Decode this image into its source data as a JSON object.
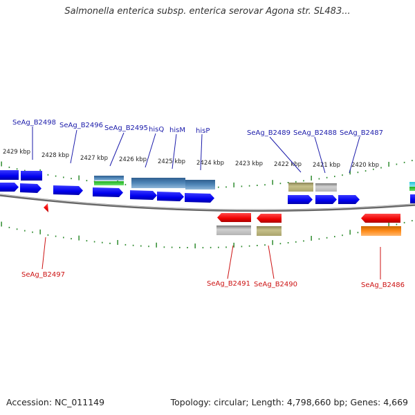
{
  "title": "Salmonella enterica subsp. enterica serovar Agona str. SL483...",
  "footer": {
    "accession": "Accession: NC_011149",
    "summary": "Topology: circular; Length: 4,798,660 bp; Genes: 4,669"
  },
  "colors": {
    "forward_gene": "#0000ee",
    "reverse_gene": "#ee0000",
    "forward_label": "#1a1aaa",
    "reverse_label": "#cc1111",
    "tick": "#2e8b2e",
    "backbone": "#777777"
  },
  "scale_labels": [
    "2429 kbp",
    "2428 kbp",
    "2427 kbp",
    "2426 kbp",
    "2425 kbp",
    "2424 kbp",
    "2423 kbp",
    "2422 kbp",
    "2421 kbp",
    "2420 kbp"
  ],
  "forward_gene_labels": [
    "SeAg_B2498",
    "SeAg_B2496",
    "SeAg_B2495",
    "hisQ",
    "hisM",
    "hisP",
    "SeAg_B2489",
    "SeAg_B2488",
    "SeAg_B2487"
  ],
  "reverse_gene_labels": [
    "SeAg_B2497",
    "SeAg_B2491",
    "SeAg_B2490",
    "SeAg_B2486"
  ]
}
